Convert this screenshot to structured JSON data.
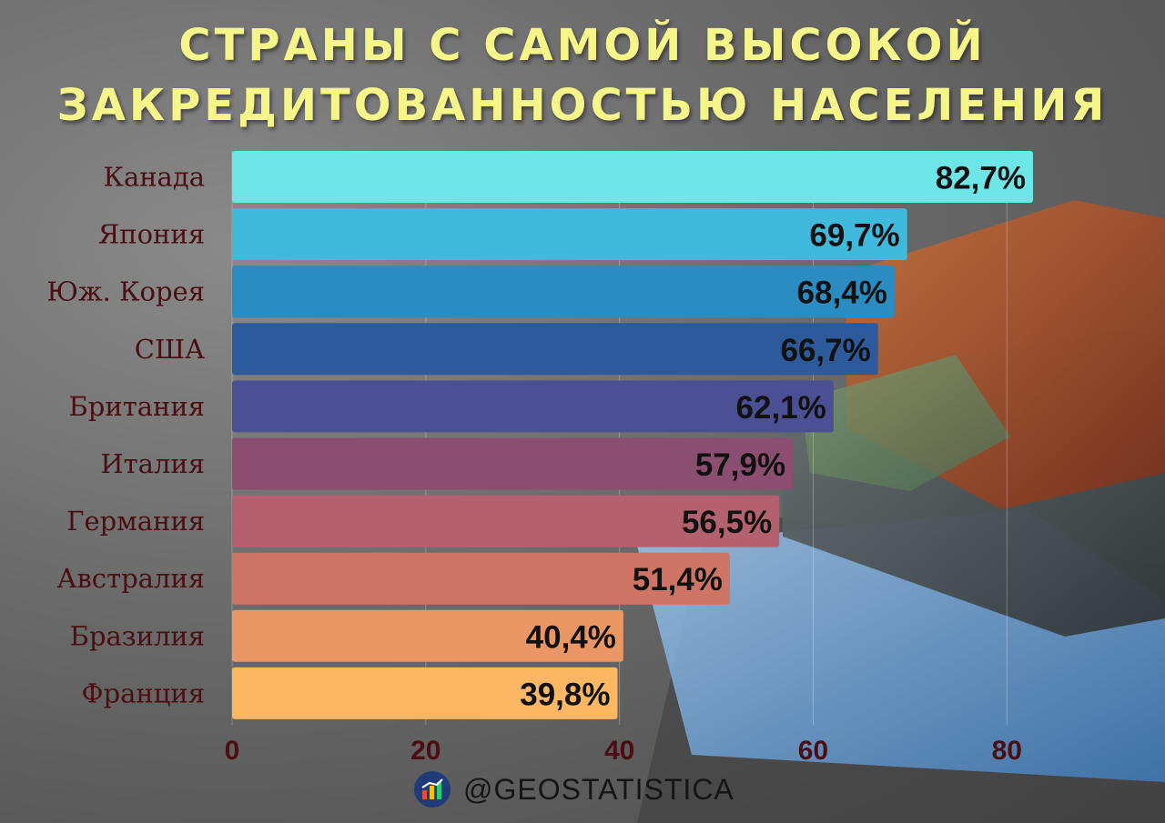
{
  "title": {
    "line1": "Страны с самой высокой",
    "line2": "закредитованностью населения"
  },
  "footer": {
    "handle": "@GEOSTATISTICA",
    "logo_icon": "bar-chart-logo-icon"
  },
  "chart_data": {
    "type": "bar",
    "orientation": "horizontal",
    "categories": [
      "Канада",
      "Япония",
      "Юж. Корея",
      "США",
      "Британия",
      "Италия",
      "Германия",
      "Австралия",
      "Бразилия",
      "Франция"
    ],
    "values": [
      82.7,
      69.7,
      68.4,
      66.7,
      62.1,
      57.9,
      56.5,
      51.4,
      40.4,
      39.8
    ],
    "value_labels": [
      "82,7%",
      "69,7%",
      "68,4%",
      "66,7%",
      "62,1%",
      "57,9%",
      "56,5%",
      "51,4%",
      "40,4%",
      "39,8%"
    ],
    "colors": [
      "#6ee6e8",
      "#3fb9dc",
      "#2a8cc0",
      "#2d5a9a",
      "#4b4f94",
      "#8b4d70",
      "#b4616f",
      "#cf7565",
      "#ea9665",
      "#fbb764"
    ],
    "xticks": [
      0,
      20,
      40,
      60,
      80
    ],
    "xlim": [
      0,
      82.7
    ],
    "grid": true
  }
}
